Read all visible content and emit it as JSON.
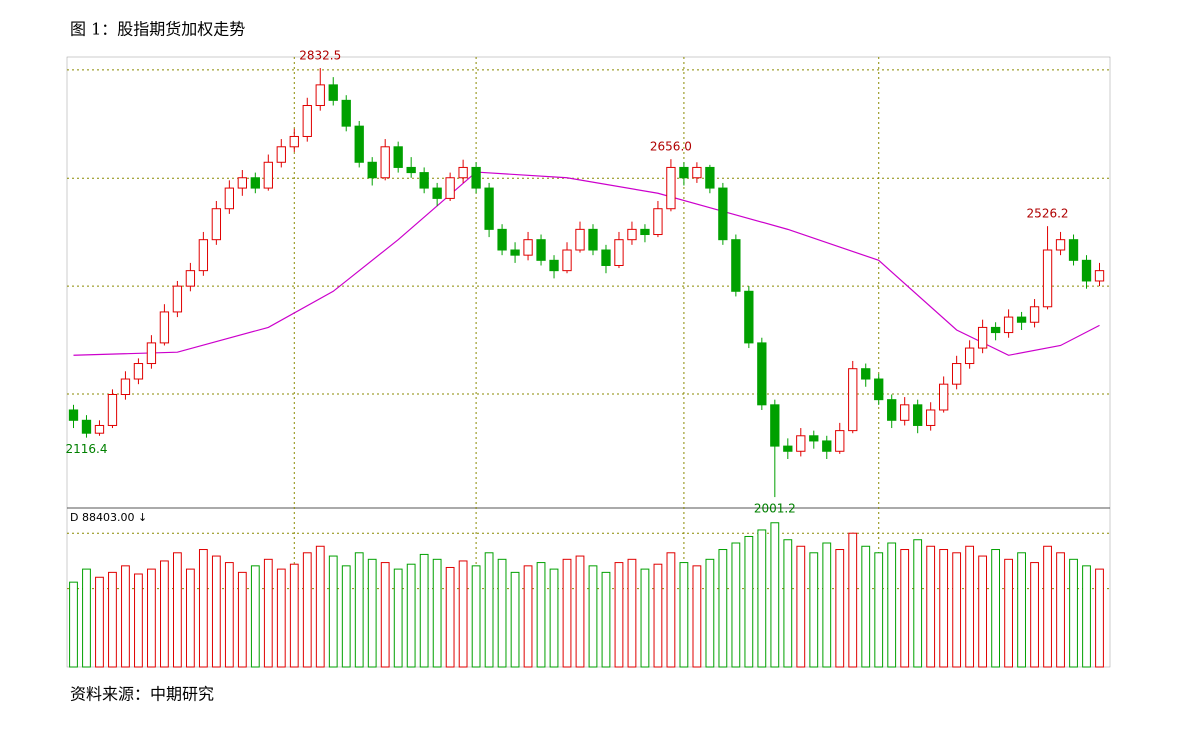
{
  "title": "图 1：股指期货加权走势",
  "source": "资料来源：中期研究",
  "chart_data": {
    "type": "candlestick",
    "open": [
      2170,
      2150,
      2125,
      2140,
      2200,
      2230,
      2260,
      2300,
      2360,
      2410,
      2440,
      2500,
      2560,
      2600,
      2620,
      2600,
      2650,
      2680,
      2700,
      2760,
      2800,
      2770,
      2720,
      2650,
      2620,
      2680,
      2640,
      2630,
      2600,
      2580,
      2620,
      2640,
      2600,
      2520,
      2480,
      2470,
      2500,
      2460,
      2440,
      2480,
      2520,
      2480,
      2450,
      2500,
      2520,
      2510,
      2560,
      2640,
      2620,
      2640,
      2600,
      2500,
      2400,
      2300,
      2180,
      2100,
      2090,
      2120,
      2110,
      2090,
      2130,
      2250,
      2230,
      2190,
      2150,
      2180,
      2140,
      2170,
      2220,
      2260,
      2290,
      2330,
      2320,
      2350,
      2340,
      2370,
      2480,
      2500,
      2460,
      2420
    ],
    "high": [
      2180,
      2160,
      2150,
      2210,
      2245,
      2270,
      2315,
      2375,
      2420,
      2455,
      2515,
      2575,
      2615,
      2635,
      2630,
      2665,
      2695,
      2715,
      2775,
      2832.5,
      2815,
      2780,
      2730,
      2660,
      2695,
      2690,
      2660,
      2640,
      2610,
      2630,
      2655,
      2650,
      2610,
      2530,
      2495,
      2515,
      2510,
      2470,
      2495,
      2535,
      2530,
      2490,
      2515,
      2535,
      2530,
      2575,
      2656,
      2650,
      2650,
      2645,
      2610,
      2510,
      2410,
      2310,
      2190,
      2115,
      2135,
      2130,
      2120,
      2145,
      2265,
      2260,
      2240,
      2200,
      2195,
      2190,
      2185,
      2235,
      2275,
      2305,
      2345,
      2340,
      2365,
      2360,
      2385,
      2526.2,
      2515,
      2510,
      2470,
      2455
    ],
    "low": [
      2135,
      2116.4,
      2120,
      2135,
      2190,
      2220,
      2250,
      2295,
      2350,
      2400,
      2430,
      2490,
      2550,
      2585,
      2590,
      2595,
      2640,
      2670,
      2690,
      2750,
      2760,
      2710,
      2640,
      2605,
      2615,
      2630,
      2620,
      2590,
      2565,
      2575,
      2610,
      2590,
      2505,
      2470,
      2455,
      2460,
      2450,
      2425,
      2435,
      2475,
      2470,
      2435,
      2445,
      2490,
      2495,
      2505,
      2555,
      2605,
      2610,
      2590,
      2490,
      2390,
      2290,
      2170,
      2001.2,
      2075,
      2080,
      2095,
      2075,
      2085,
      2125,
      2215,
      2180,
      2135,
      2140,
      2125,
      2130,
      2165,
      2210,
      2250,
      2280,
      2305,
      2310,
      2325,
      2330,
      2365,
      2470,
      2450,
      2405,
      2410
    ],
    "close": [
      2150,
      2125,
      2140,
      2200,
      2230,
      2260,
      2300,
      2360,
      2410,
      2440,
      2500,
      2560,
      2600,
      2620,
      2600,
      2650,
      2680,
      2700,
      2760,
      2800,
      2770,
      2720,
      2650,
      2620,
      2680,
      2640,
      2630,
      2600,
      2580,
      2620,
      2640,
      2600,
      2520,
      2480,
      2470,
      2500,
      2460,
      2440,
      2480,
      2520,
      2480,
      2450,
      2500,
      2520,
      2510,
      2560,
      2640,
      2620,
      2640,
      2600,
      2500,
      2400,
      2300,
      2180,
      2100,
      2090,
      2120,
      2110,
      2090,
      2130,
      2250,
      2230,
      2190,
      2150,
      2180,
      2140,
      2170,
      2220,
      2260,
      2290,
      2330,
      2320,
      2350,
      2340,
      2370,
      2480,
      2500,
      2460,
      2420,
      2440
    ],
    "up_color": "#e00000",
    "down_color": "#00a000",
    "ylim": [
      1982,
      2854
    ],
    "ygrid": [
      2829,
      2619,
      2410,
      2201
    ],
    "xgrid": [
      17,
      31,
      47,
      62
    ],
    "grid_color": "#8a8a00",
    "average_line": {
      "color": "#cc00cc",
      "x": [
        0,
        8,
        15,
        20,
        25,
        31,
        38,
        45,
        50,
        55,
        62,
        68,
        72,
        76,
        79
      ],
      "values": [
        2276,
        2282,
        2330,
        2400,
        2500,
        2631,
        2620,
        2590,
        2555,
        2520,
        2460,
        2325,
        2276,
        2295,
        2334
      ]
    },
    "annotations": [
      {
        "label": "2832.5",
        "at": 19,
        "end": "high"
      },
      {
        "label": "2656.0",
        "at": 46,
        "end": "high"
      },
      {
        "label": "2526.2",
        "at": 75,
        "end": "high"
      },
      {
        "label": "2116.4",
        "at": 1,
        "end": "low"
      },
      {
        "label": "2001.2",
        "at": 54,
        "end": "low"
      }
    ],
    "volume_label": "D  88403.00 ↓",
    "volume": [
      52000,
      60000,
      55000,
      58000,
      62000,
      57000,
      60000,
      65000,
      70000,
      60000,
      72000,
      68000,
      64000,
      58000,
      62000,
      66000,
      60000,
      63000,
      70000,
      74000,
      68000,
      62000,
      70000,
      66000,
      64000,
      60000,
      63000,
      69000,
      66000,
      61000,
      65000,
      62000,
      70000,
      66000,
      58000,
      62000,
      64000,
      60000,
      66000,
      68000,
      62000,
      58000,
      64000,
      66000,
      60000,
      63000,
      70000,
      64000,
      62000,
      66000,
      72000,
      76000,
      80000,
      84000,
      88403,
      78000,
      74000,
      70000,
      76000,
      72000,
      82000,
      74000,
      70000,
      76000,
      72000,
      78000,
      74000,
      72000,
      70000,
      74000,
      68000,
      72000,
      66000,
      70000,
      64000,
      74000,
      70000,
      66000,
      62000,
      60000
    ],
    "volume_ylim": [
      0,
      95000
    ],
    "volume_grid": [
      48000,
      82000
    ]
  }
}
